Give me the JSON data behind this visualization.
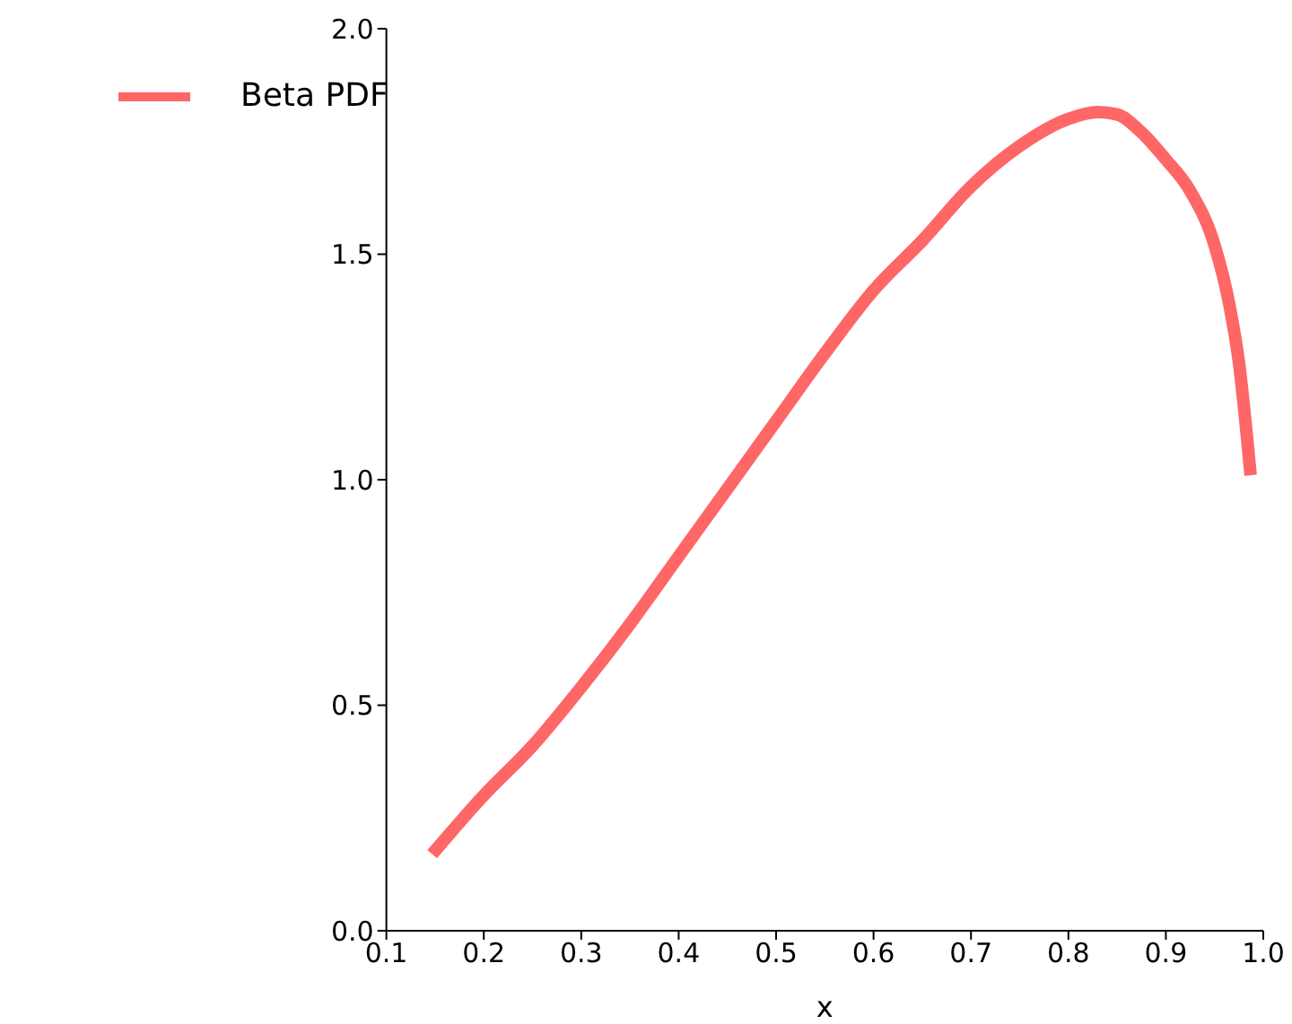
{
  "chart_data": {
    "type": "line",
    "xlabel": "x",
    "xlim": [
      0.1,
      1.0
    ],
    "xticks": [
      {
        "value": 0.1,
        "label": "0.1"
      },
      {
        "value": 0.2,
        "label": "0.2"
      },
      {
        "value": 0.3,
        "label": "0.3"
      },
      {
        "value": 0.4,
        "label": "0.4"
      },
      {
        "value": 0.5,
        "label": "0.5"
      },
      {
        "value": 0.6,
        "label": "0.6"
      },
      {
        "value": 0.7,
        "label": "0.7"
      },
      {
        "value": 0.8,
        "label": "0.8"
      },
      {
        "value": 0.9,
        "label": "0.9"
      },
      {
        "value": 1.0,
        "label": "1.0"
      }
    ],
    "ylim": [
      0,
      2.0
    ],
    "yticks": [
      {
        "value": 0,
        "label": "0.0"
      },
      {
        "value": 0.5,
        "label": "0.5"
      },
      {
        "value": 1.0,
        "label": "1.0"
      },
      {
        "value": 1.5,
        "label": "1.5"
      },
      {
        "value": 2.0,
        "label": "2.0"
      }
    ],
    "grid": false,
    "legend": "top left",
    "marker": "none",
    "line_style": "solid",
    "series": [
      {
        "name": "Beta PDF",
        "color": "#ff6666",
        "x": [
          0.147,
          0.2,
          0.25,
          0.3,
          0.35,
          0.4,
          0.45,
          0.5,
          0.55,
          0.6,
          0.65,
          0.7,
          0.75,
          0.8,
          0.83,
          0.85,
          0.875,
          0.9,
          0.925,
          0.95,
          0.965,
          0.975,
          0.987
        ],
        "values": [
          0.17,
          0.3,
          0.41,
          0.54,
          0.68,
          0.83,
          0.98,
          1.13,
          1.28,
          1.42,
          1.53,
          1.65,
          1.74,
          1.8,
          1.815,
          1.81,
          1.77,
          1.71,
          1.64,
          1.52,
          1.39,
          1.26,
          1.01
        ]
      }
    ]
  }
}
